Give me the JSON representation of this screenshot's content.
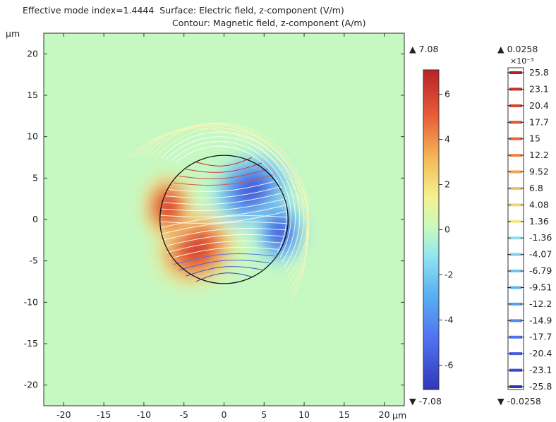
{
  "title": {
    "line1": "Effective mode index=1.4444  Surface: Electric field, z-component (V/m)",
    "line2": "Contour: Magnetic field, z-component (A/m)"
  },
  "chart_data": {
    "type": "heatmap",
    "surface": {
      "quantity": "Electric field, z-component (V/m)",
      "colormap": "rainbow",
      "range": [
        -7.08,
        7.08
      ],
      "max_label": "▲ 7.08",
      "min_label": "▼ -7.08",
      "ticks": [
        6,
        4,
        2,
        0,
        -2,
        -4,
        -6
      ],
      "tick_labels": [
        "6",
        "4",
        "2",
        "0",
        "-2",
        "-4",
        "-6"
      ],
      "description": "Antisymmetric lobes: positive (red) at lower-left and left side, negative (blue) at upper-right and right side"
    },
    "contour": {
      "quantity": "Magnetic field, z-component (A/m)",
      "range": [
        -0.0258,
        0.0258
      ],
      "max_label": "▲ 0.0258",
      "min_label": "▼ -0.0258",
      "exponent_label": "×10⁻³",
      "levels": [
        25.8,
        23.1,
        20.4,
        17.7,
        15,
        12.2,
        9.52,
        6.8,
        4.08,
        1.36,
        -1.36,
        -4.07,
        -6.79,
        -9.51,
        -12.2,
        -14.9,
        -17.7,
        -20.4,
        -23.1,
        -25.8
      ],
      "level_labels": [
        "25.8",
        "23.1",
        "20.4",
        "17.7",
        "15",
        "12.2",
        "9.52",
        "6.8",
        "4.08",
        "1.36",
        "-1.36",
        "-4.07",
        "-6.79",
        "-9.51",
        "-12.2",
        "-14.9",
        "-17.7",
        "-20.4",
        "-23.1",
        "-25.8"
      ]
    },
    "geometry": {
      "core_radius": 8,
      "core_center": [
        0,
        0
      ]
    },
    "xlabel": "µm",
    "ylabel": "µm",
    "xlim": [
      -22.5,
      22.5
    ],
    "ylim": [
      -22.5,
      22.5
    ],
    "xticks": [
      -20,
      -15,
      -10,
      -5,
      0,
      5,
      10,
      15,
      20
    ],
    "xtick_labels": [
      "-20",
      "-15",
      "-10",
      "-5",
      "0",
      "5",
      "10",
      "15",
      "20"
    ],
    "yticks": [
      20,
      15,
      10,
      5,
      0,
      -5,
      -10,
      -15,
      -20
    ],
    "ytick_labels": [
      "20",
      "15",
      "10",
      "5",
      "0",
      "-5",
      "-10",
      "-15",
      "-20"
    ],
    "grid": false
  }
}
